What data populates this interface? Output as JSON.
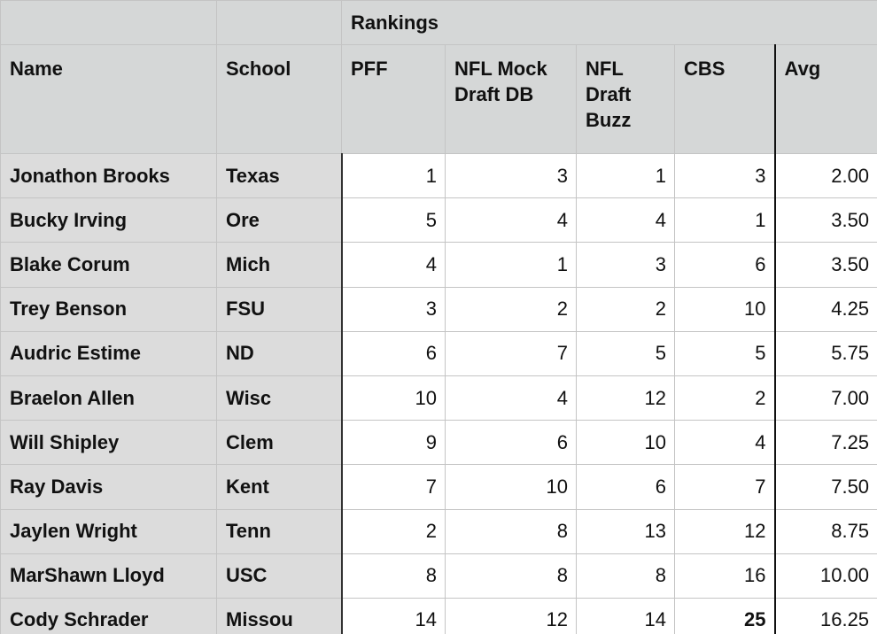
{
  "header": {
    "group_label": "Rankings",
    "columns": [
      "Name",
      "School",
      "PFF",
      "NFL Mock Draft DB",
      "NFL Draft Buzz",
      "CBS",
      "Avg"
    ]
  },
  "rows": [
    [
      "Jonathon Brooks",
      "Texas",
      "1",
      "3",
      "1",
      "3",
      "2.00"
    ],
    [
      "Bucky Irving",
      "Ore",
      "5",
      "4",
      "4",
      "1",
      "3.50"
    ],
    [
      "Blake Corum",
      "Mich",
      "4",
      "1",
      "3",
      "6",
      "3.50"
    ],
    [
      "Trey Benson",
      "FSU",
      "3",
      "2",
      "2",
      "10",
      "4.25"
    ],
    [
      "Audric Estime",
      "ND",
      "6",
      "7",
      "5",
      "5",
      "5.75"
    ],
    [
      "Braelon Allen",
      "Wisc",
      "10",
      "4",
      "12",
      "2",
      "7.00"
    ],
    [
      "Will Shipley",
      "Clem",
      "9",
      "6",
      "10",
      "4",
      "7.25"
    ],
    [
      "Ray Davis",
      "Kent",
      "7",
      "10",
      "6",
      "7",
      "7.50"
    ],
    [
      "Jaylen Wright",
      "Tenn",
      "2",
      "8",
      "13",
      "12",
      "8.75"
    ],
    [
      "MarShawn Lloyd",
      "USC",
      "8",
      "8",
      "8",
      "16",
      "10.00"
    ],
    [
      "Cody Schrader",
      "Missou",
      "14",
      "12",
      "14",
      "25",
      "16.25"
    ]
  ]
}
